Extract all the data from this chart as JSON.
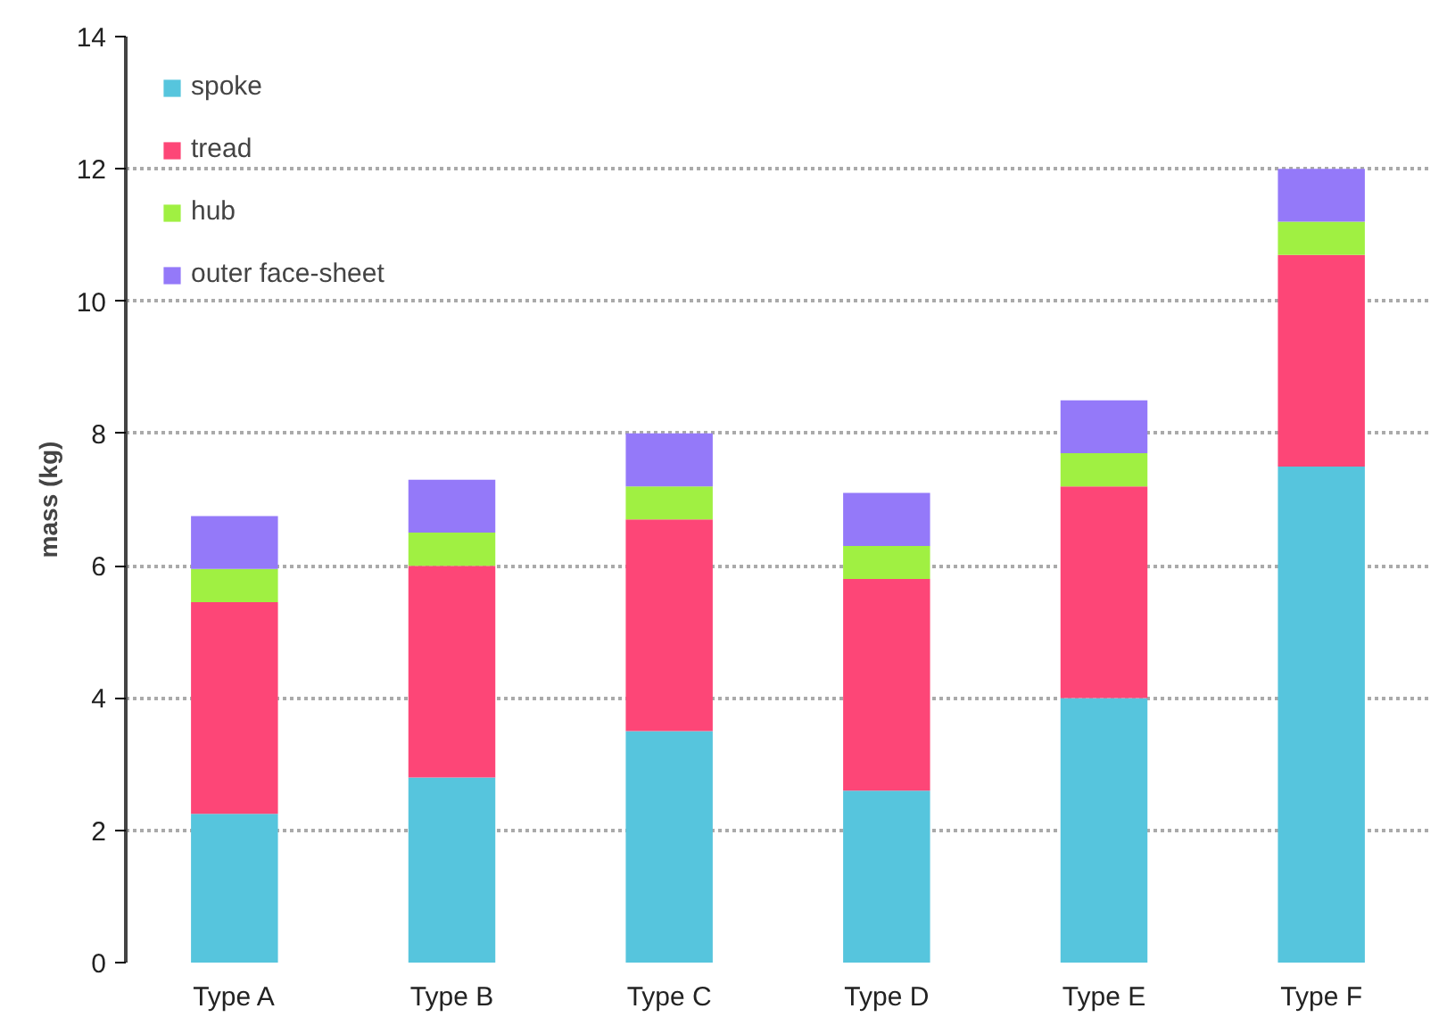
{
  "chart_data": {
    "type": "bar",
    "stacked": true,
    "ylabel": "mass (kg)",
    "categories": [
      "Type A",
      "Type B",
      "Type C",
      "Type D",
      "Type E",
      "Type F"
    ],
    "series": [
      {
        "name": "spoke",
        "color": "#56c5dd",
        "values": [
          2.25,
          2.8,
          3.5,
          2.6,
          4.0,
          7.5
        ]
      },
      {
        "name": "tread",
        "color": "#fd4677",
        "values": [
          3.2,
          3.2,
          3.2,
          3.2,
          3.2,
          3.2
        ]
      },
      {
        "name": "hub",
        "color": "#a0f042",
        "values": [
          0.5,
          0.5,
          0.5,
          0.5,
          0.5,
          0.5
        ]
      },
      {
        "name": "outer face-sheet",
        "color": "#9479f9",
        "values": [
          0.8,
          0.8,
          0.8,
          0.8,
          0.8,
          0.8
        ]
      }
    ],
    "ylim": [
      0,
      14
    ],
    "yticks": [
      0,
      2,
      4,
      6,
      8,
      10,
      12,
      14
    ],
    "grid": "y",
    "legend": "top left"
  }
}
